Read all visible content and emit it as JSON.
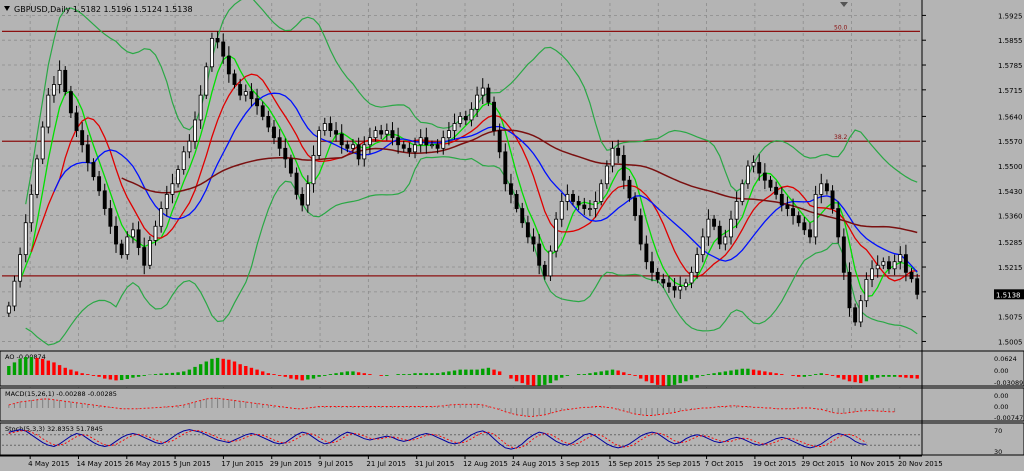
{
  "header": {
    "symbol_line": "GBPUSD,Daily  1.5182 1.5196 1.5124 1.5138",
    "bid_label": "1.5138"
  },
  "colors": {
    "background": "#b4b4b4",
    "grid": "#8c8c8c",
    "bull_body": "#ffffff",
    "bear_body": "#000000",
    "bollinger": "#2aa845",
    "ma_fast": "#00e000",
    "ma_mid": "#e00000",
    "ma_slow": "#0010ff",
    "ma_long": "#7a1010",
    "fib_line": "#8b1010",
    "ao_up": "#00a000",
    "ao_down": "#ff0000",
    "macd_hist": "#808080",
    "macd_signal": "#ff0000",
    "stoch_main": "#0000a0",
    "stoch_signal": "#ff0000"
  },
  "chart_data": {
    "type": "candlestick",
    "symbol": "GBPUSD",
    "timeframe": "Daily",
    "last": {
      "open": 1.5182,
      "high": 1.5196,
      "low": 1.5124,
      "close": 1.5138
    },
    "price_axis": {
      "ticks": [
        "1.5925",
        "1.5855",
        "1.5785",
        "1.5715",
        "1.5640",
        "1.5570",
        "1.5500",
        "1.5430",
        "1.5360",
        "1.5285",
        "1.5215",
        "1.5145",
        "1.5075",
        "1.5005"
      ],
      "ylim": [
        1.4995,
        1.596
      ]
    },
    "date_labels": [
      "4 May 2015",
      "14 May 2015",
      "26 May 2015",
      "5 Jun 2015",
      "17 Jun 2015",
      "29 Jun 2015",
      "9 Jul 2015",
      "21 Jul 2015",
      "31 Jul 2015",
      "12 Aug 2015",
      "24 Aug 2015",
      "3 Sep 2015",
      "15 Sep 2015",
      "25 Sep 2015",
      "7 Oct 2015",
      "19 Oct 2015",
      "29 Oct 2015",
      "10 Nov 2015",
      "20 Nov 2015"
    ],
    "fib_levels": [
      {
        "label": "50.0",
        "price": 1.588
      },
      {
        "label": "38.2",
        "price": 1.557
      },
      {
        "label": "",
        "price": 1.519
      }
    ],
    "closes": [
      1.5105,
      1.5175,
      1.525,
      1.534,
      1.542,
      1.552,
      1.561,
      1.57,
      1.573,
      1.577,
      1.571,
      1.565,
      1.56,
      1.556,
      1.551,
      1.547,
      1.543,
      1.538,
      1.533,
      1.528,
      1.525,
      1.53,
      1.532,
      1.527,
      1.522,
      1.529,
      1.533,
      1.538,
      1.542,
      1.545,
      1.549,
      1.554,
      1.557,
      1.563,
      1.57,
      1.578,
      1.586,
      1.585,
      1.581,
      1.576,
      1.573,
      1.57,
      1.571,
      1.569,
      1.567,
      1.564,
      1.561,
      1.558,
      1.555,
      1.552,
      1.548,
      1.542,
      1.539,
      1.545,
      1.553,
      1.56,
      1.562,
      1.56,
      1.559,
      1.556,
      1.555,
      1.556,
      1.552,
      1.556,
      1.558,
      1.56,
      1.559,
      1.56,
      1.558,
      1.556,
      1.555,
      1.554,
      1.556,
      1.558,
      1.556,
      1.556,
      1.555,
      1.558,
      1.56,
      1.562,
      1.564,
      1.563,
      1.566,
      1.57,
      1.572,
      1.568,
      1.56,
      1.554,
      1.545,
      1.542,
      1.538,
      1.534,
      1.53,
      1.528,
      1.522,
      1.519,
      1.526,
      1.535,
      1.54,
      1.542,
      1.54,
      1.539,
      1.538,
      1.538,
      1.54,
      1.545,
      1.55,
      1.555,
      1.553,
      1.546,
      1.541,
      1.536,
      1.528,
      1.523,
      1.52,
      1.518,
      1.517,
      1.516,
      1.515,
      1.516,
      1.517,
      1.52,
      1.525,
      1.53,
      1.535,
      1.533,
      1.528,
      1.53,
      1.535,
      1.54,
      1.545,
      1.55,
      1.551,
      1.548,
      1.546,
      1.544,
      1.542,
      1.539,
      1.538,
      1.536,
      1.534,
      1.532,
      1.53,
      1.542,
      1.545,
      1.543,
      1.538,
      1.53,
      1.52,
      1.51,
      1.506,
      1.512,
      1.518,
      1.521,
      1.522,
      1.523,
      1.521,
      1.523,
      1.525,
      1.52,
      1.5182,
      1.5138
    ],
    "indicators": [
      {
        "name": "AO",
        "values_shown": "-0.00874",
        "axis": [
          "0.0624",
          "0.00",
          "-0.03089"
        ]
      },
      {
        "name": "MACD(15,26,1)",
        "values_shown": "-0.00288 -0.00285",
        "axis": [
          "0.00",
          "0.00",
          "-0.00747"
        ]
      },
      {
        "name": "Stoch(5,3,3)",
        "values_shown": "32.8353 51.7845",
        "axis": [
          "70",
          "30"
        ]
      }
    ],
    "ao_bars": [
      0.5,
      0.7,
      0.9,
      1.0,
      1.0,
      0.95,
      0.9,
      0.8,
      0.7,
      0.55,
      0.4,
      0.3,
      0.2,
      0.1,
      0.05,
      -0.05,
      -0.1,
      -0.2,
      -0.25,
      -0.3,
      -0.28,
      -0.22,
      -0.15,
      -0.1,
      -0.05,
      0.02,
      0.05,
      0.08,
      0.1,
      0.12,
      0.15,
      0.2,
      0.3,
      0.45,
      0.6,
      0.75,
      0.9,
      0.95,
      0.9,
      0.85,
      0.75,
      0.6,
      0.5,
      0.4,
      0.3,
      0.2,
      0.1,
      0.05,
      -0.05,
      -0.1,
      -0.2,
      -0.25,
      -0.3,
      -0.25,
      -0.2,
      -0.1,
      -0.05,
      0.05,
      0.1,
      0.15,
      0.2,
      0.2,
      0.15,
      0.1,
      0.05,
      0.0,
      -0.05,
      -0.05,
      0.0,
      0.05,
      0.05,
      0.05,
      0.1,
      0.1,
      0.1,
      0.1,
      0.1,
      0.15,
      0.2,
      0.25,
      0.3,
      0.3,
      0.3,
      0.3,
      0.35,
      0.4,
      0.3,
      0.2,
      0.0,
      -0.2,
      -0.35,
      -0.45,
      -0.55,
      -0.6,
      -0.6,
      -0.55,
      -0.45,
      -0.3,
      -0.15,
      -0.05,
      0.0,
      0.05,
      0.05,
      0.1,
      0.15,
      0.2,
      0.25,
      0.3,
      0.25,
      0.15,
      0.05,
      -0.05,
      -0.2,
      -0.35,
      -0.45,
      -0.55,
      -0.6,
      -0.6,
      -0.55,
      -0.45,
      -0.35,
      -0.25,
      -0.15,
      -0.05,
      0.05,
      0.1,
      0.15,
      0.2,
      0.25,
      0.3,
      0.35,
      0.35,
      0.3,
      0.25,
      0.2,
      0.15,
      0.1,
      0.05,
      0.0,
      -0.05,
      -0.1,
      -0.1,
      -0.05,
      0.05,
      0.1,
      0.05,
      -0.05,
      -0.15,
      -0.25,
      -0.35,
      -0.4,
      -0.45,
      -0.35,
      -0.25,
      -0.15,
      -0.1,
      -0.1,
      -0.1,
      -0.12,
      -0.15,
      -0.18,
      -0.2
    ],
    "macd_bars": [
      0.2,
      0.3,
      0.4,
      0.45,
      0.5,
      0.55,
      0.6,
      0.6,
      0.55,
      0.5,
      0.45,
      0.4,
      0.35,
      0.3,
      0.25,
      0.2,
      0.15,
      0.1,
      0.05,
      0.0,
      -0.05,
      -0.05,
      -0.05,
      -0.05,
      -0.02,
      0.0,
      0.02,
      0.05,
      0.08,
      0.1,
      0.15,
      0.2,
      0.3,
      0.4,
      0.5,
      0.6,
      0.65,
      0.65,
      0.6,
      0.55,
      0.5,
      0.45,
      0.4,
      0.35,
      0.3,
      0.25,
      0.2,
      0.15,
      0.1,
      0.05,
      0.0,
      -0.05,
      -0.05,
      0.0,
      0.05,
      0.1,
      0.1,
      0.1,
      0.1,
      0.1,
      0.1,
      0.1,
      0.1,
      0.1,
      0.1,
      0.1,
      0.1,
      0.1,
      0.1,
      0.1,
      0.1,
      0.1,
      0.1,
      0.1,
      0.1,
      0.1,
      0.12,
      0.15,
      0.2,
      0.22,
      0.25,
      0.25,
      0.25,
      0.25,
      0.2,
      0.1,
      0.0,
      -0.1,
      -0.25,
      -0.35,
      -0.45,
      -0.5,
      -0.55,
      -0.55,
      -0.5,
      -0.45,
      -0.35,
      -0.25,
      -0.15,
      -0.1,
      -0.05,
      0.0,
      0.05,
      0.05,
      0.1,
      0.1,
      0.05,
      0.0,
      -0.1,
      -0.2,
      -0.3,
      -0.4,
      -0.45,
      -0.5,
      -0.5,
      -0.45,
      -0.4,
      -0.35,
      -0.3,
      -0.2,
      -0.15,
      -0.1,
      -0.05,
      0.0,
      0.0,
      0.05,
      0.1,
      0.1,
      0.15,
      0.15,
      0.1,
      0.1,
      0.05,
      0.05,
      0.0,
      0.0,
      -0.05,
      -0.05,
      -0.05,
      -0.05,
      0.0,
      0.0,
      0.0,
      -0.05,
      -0.1,
      -0.2,
      -0.3,
      -0.35,
      -0.35,
      -0.3,
      -0.25,
      -0.2,
      -0.18,
      -0.18,
      -0.2,
      -0.22,
      -0.25,
      -0.25
    ],
    "stoch_main": [
      80,
      85,
      90,
      85,
      70,
      55,
      40,
      30,
      25,
      35,
      50,
      65,
      75,
      70,
      55,
      40,
      30,
      25,
      30,
      45,
      60,
      70,
      75,
      70,
      60,
      50,
      40,
      35,
      45,
      60,
      75,
      85,
      90,
      85,
      80,
      70,
      60,
      50,
      45,
      40,
      50,
      60,
      70,
      75,
      70,
      60,
      50,
      40,
      35,
      40,
      55,
      70,
      80,
      75,
      60,
      45,
      35,
      40,
      55,
      70,
      80,
      75,
      65,
      55,
      50,
      55,
      60,
      65,
      60,
      50,
      45,
      50,
      60,
      70,
      75,
      70,
      60,
      50,
      40,
      35,
      40,
      55,
      70,
      80,
      85,
      75,
      55,
      35,
      20,
      15,
      20,
      35,
      55,
      70,
      80,
      75,
      60,
      45,
      35,
      30,
      40,
      55,
      70,
      75,
      65,
      50,
      35,
      25,
      20,
      25,
      35,
      50,
      65,
      75,
      80,
      75,
      60,
      45,
      35,
      40,
      55,
      65,
      70,
      65,
      55,
      45,
      40,
      45,
      55,
      60,
      55,
      45,
      35,
      30,
      35,
      45,
      55,
      60,
      55,
      45,
      35,
      25,
      20,
      25,
      35,
      50,
      65,
      75,
      70,
      60,
      45,
      35,
      33
    ],
    "stoch_signal": [
      75,
      80,
      85,
      86,
      80,
      70,
      55,
      42,
      32,
      30,
      37,
      50,
      63,
      70,
      67,
      55,
      42,
      32,
      28,
      33,
      45,
      58,
      68,
      72,
      68,
      60,
      50,
      42,
      40,
      47,
      60,
      73,
      83,
      87,
      85,
      78,
      70,
      60,
      52,
      45,
      45,
      50,
      60,
      68,
      72,
      68,
      60,
      50,
      42,
      38,
      43,
      55,
      68,
      75,
      72,
      60,
      47,
      38,
      43,
      55,
      68,
      75,
      73,
      65,
      57,
      53,
      55,
      60,
      62,
      58,
      52,
      48,
      52,
      60,
      68,
      72,
      68,
      60,
      50,
      42,
      38,
      43,
      55,
      68,
      78,
      80,
      72,
      55,
      37,
      23,
      18,
      23,
      37,
      55,
      68,
      75,
      72,
      60,
      47,
      37,
      33,
      38,
      50,
      63,
      72,
      68,
      55,
      40,
      28,
      23,
      25,
      35,
      50,
      63,
      73,
      77,
      72,
      60,
      47,
      40,
      43,
      53,
      63,
      67,
      63,
      55,
      47,
      43,
      45,
      52,
      57,
      55,
      47,
      38,
      33,
      35,
      43,
      52,
      57,
      55,
      47,
      38,
      30,
      25,
      25,
      33,
      45,
      60,
      70,
      72,
      65,
      52,
      40
    ]
  }
}
